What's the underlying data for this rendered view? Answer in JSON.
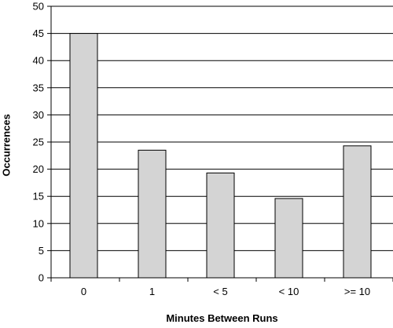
{
  "chart_data": {
    "type": "bar",
    "title": "",
    "xlabel": "Minutes Between Runs",
    "ylabel": "Occurrences",
    "categories": [
      "0",
      "1",
      "< 5",
      "< 10",
      ">= 10"
    ],
    "values": [
      45,
      23.5,
      19.3,
      14.6,
      24.3
    ],
    "ylim": [
      0,
      50
    ],
    "yticks": [
      0,
      5,
      10,
      15,
      20,
      25,
      30,
      35,
      40,
      45,
      50
    ],
    "grid": true,
    "legend": "none",
    "bar_color": "#d4d4d4",
    "bar_stroke": "#000000"
  }
}
